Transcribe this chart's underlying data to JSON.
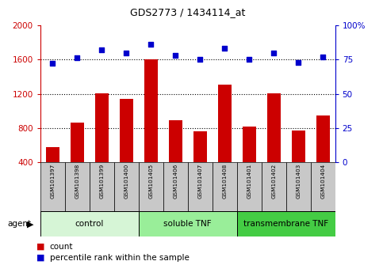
{
  "title": "GDS2773 / 1434114_at",
  "samples": [
    "GSM101397",
    "GSM101398",
    "GSM101399",
    "GSM101400",
    "GSM101405",
    "GSM101406",
    "GSM101407",
    "GSM101408",
    "GSM101401",
    "GSM101402",
    "GSM101403",
    "GSM101404"
  ],
  "counts": [
    575,
    860,
    1210,
    1140,
    1600,
    890,
    760,
    1310,
    820,
    1210,
    770,
    950
  ],
  "percentiles": [
    72,
    76,
    82,
    80,
    86,
    78,
    75,
    83,
    75,
    80,
    73,
    77
  ],
  "groups": [
    {
      "label": "control",
      "start": 0,
      "end": 4,
      "color": "#d6f5d6"
    },
    {
      "label": "soluble TNF",
      "start": 4,
      "end": 8,
      "color": "#99ee99"
    },
    {
      "label": "transmembrane TNF",
      "start": 8,
      "end": 12,
      "color": "#44cc44"
    }
  ],
  "ylim_left": [
    400,
    2000
  ],
  "ylim_right": [
    0,
    100
  ],
  "yticks_left": [
    400,
    800,
    1200,
    1600,
    2000
  ],
  "yticks_right": [
    0,
    25,
    50,
    75,
    100
  ],
  "bar_color": "#cc0000",
  "dot_color": "#0000cc",
  "bar_bottom": 400,
  "agent_label": "agent",
  "legend_count": "count",
  "legend_percentile": "percentile rank within the sample",
  "xtick_bg_color": "#c8c8c8",
  "hgrid_values": [
    800,
    1200,
    1600
  ]
}
